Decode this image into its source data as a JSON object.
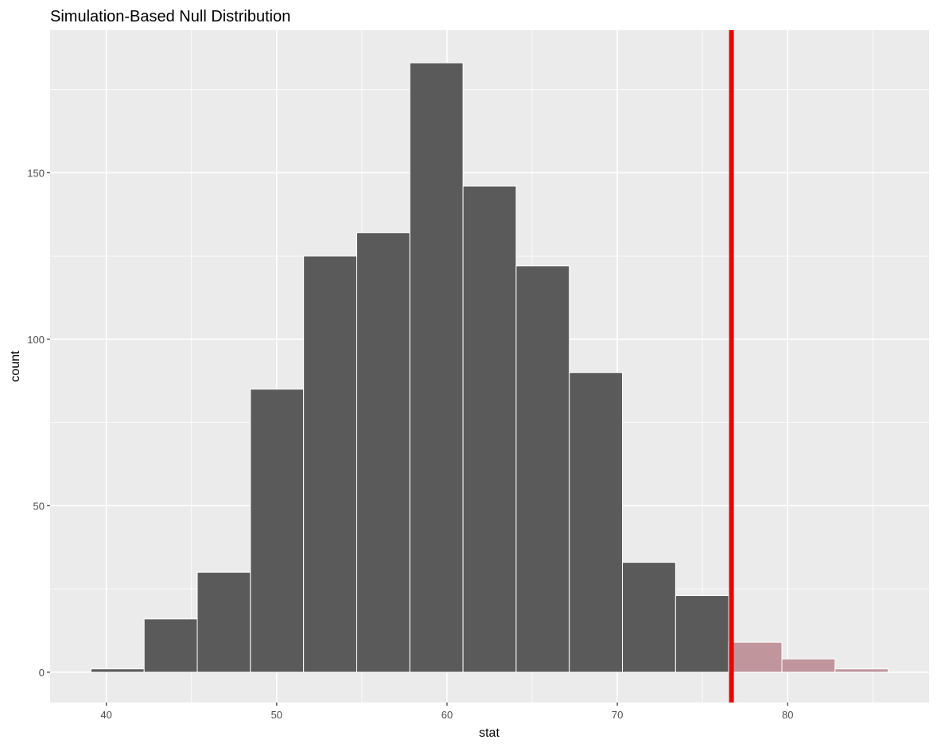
{
  "chart_data": {
    "type": "bar",
    "title": "Simulation-Based Null Distribution",
    "xlabel": "stat",
    "ylabel": "count",
    "xlim": [
      36.7,
      88.3
    ],
    "ylim": [
      -9.1,
      192.8
    ],
    "x_ticks": [
      40,
      50,
      60,
      70,
      80
    ],
    "y_ticks": [
      0,
      50,
      100,
      150
    ],
    "grid": true,
    "bin_start": 39.1,
    "bin_width": 3.12,
    "values": [
      1,
      16,
      30,
      85,
      125,
      132,
      183,
      146,
      122,
      90,
      33,
      23,
      9,
      4,
      1
    ],
    "observed_stat": 76.7,
    "colors": {
      "bar": "#5A5A5A",
      "shaded": "#C0969C",
      "line": "#EE0000",
      "panel": "#EBEBEB",
      "grid": "#FFFFFF"
    }
  }
}
